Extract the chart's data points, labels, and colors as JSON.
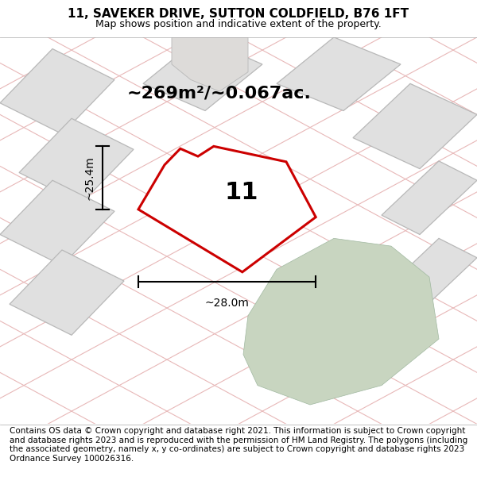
{
  "title": "11, SAVEKER DRIVE, SUTTON COLDFIELD, B76 1FT",
  "subtitle": "Map shows position and indicative extent of the property.",
  "footer": "Contains OS data © Crown copyright and database right 2021. This information is subject to Crown copyright and database rights 2023 and is reproduced with the permission of HM Land Registry. The polygons (including the associated geometry, namely x, y co-ordinates) are subject to Crown copyright and database rights 2023 Ordnance Survey 100026316.",
  "background_color": "#ffffff",
  "map_bg": "#f0eeec",
  "green_area_color": "#c8d5c0",
  "red_outline_color": "#cc0000",
  "grid_line_color": "#e8b8b8",
  "property_grid_color": "#b8b8b8",
  "area_text": "~269m²/~0.067ac.",
  "property_number": "11",
  "width_label": "~28.0m",
  "height_label": "~25.4m",
  "title_fontsize": 11,
  "subtitle_fontsize": 9,
  "footer_fontsize": 7.5,
  "area_fontsize": 16,
  "number_fontsize": 22,
  "label_fontsize": 10
}
